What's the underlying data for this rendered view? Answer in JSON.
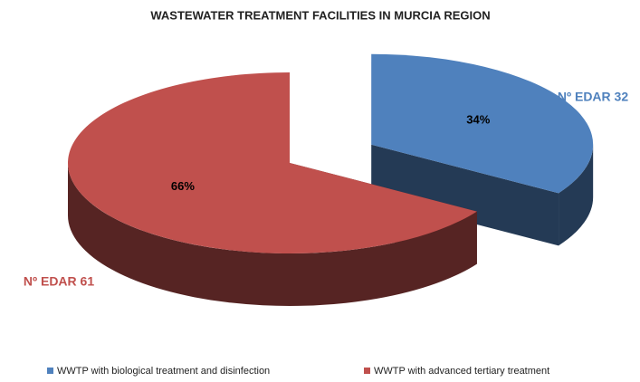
{
  "chart_data": {
    "type": "pie",
    "title": "WASTEWATER TREATMENT FACILITIES IN MURCIA REGION",
    "categories": [
      "WWTP with biological treatment and disinfection",
      "WWTP with advanced tertiary treatment"
    ],
    "values": [
      34,
      66
    ],
    "value_labels": [
      "34%",
      "66%"
    ],
    "slice_labels": [
      "Nº EDAR 32",
      "Nº EDAR 61"
    ],
    "colors": [
      "#4f81bd",
      "#c0504d"
    ],
    "legend": "bottom"
  }
}
